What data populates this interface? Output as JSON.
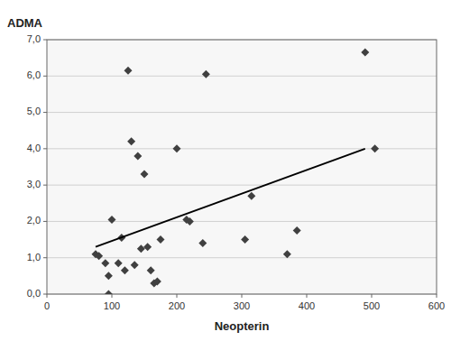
{
  "chart_data": {
    "type": "scatter",
    "xlabel": "Neopterin",
    "ylabel": "ADMA",
    "series": [
      {
        "type": "scatter",
        "marker": "diamond",
        "color": "#404040",
        "x": [
          75,
          80,
          90,
          95,
          95,
          100,
          110,
          115,
          120,
          125,
          130,
          135,
          140,
          145,
          150,
          155,
          160,
          165,
          170,
          175,
          200,
          215,
          220,
          240,
          245,
          305,
          315,
          370,
          385,
          490,
          505
        ],
        "values": [
          1.1,
          1.05,
          0.85,
          0.5,
          0.0,
          2.05,
          0.85,
          1.55,
          0.65,
          6.15,
          4.2,
          0.8,
          3.8,
          1.25,
          3.3,
          1.3,
          0.65,
          0.3,
          0.35,
          1.5,
          4.0,
          2.05,
          2.0,
          1.4,
          6.05,
          1.5,
          2.7,
          1.1,
          1.75,
          6.65,
          4.0
        ]
      },
      {
        "type": "line",
        "color": "#000000",
        "x": [
          75,
          490
        ],
        "values": [
          1.3,
          4.0
        ]
      }
    ],
    "xlim": [
      0,
      600
    ],
    "ylim": [
      0.0,
      7.0
    ],
    "xticks": [
      0,
      100,
      200,
      300,
      400,
      500,
      600
    ],
    "yticks": [
      {
        "value": 0.0,
        "label": "0,0"
      },
      {
        "value": 1.0,
        "label": "1,0"
      },
      {
        "value": 2.0,
        "label": "2,0"
      },
      {
        "value": 3.0,
        "label": "3,0"
      },
      {
        "value": 4.0,
        "label": "4,0"
      },
      {
        "value": 5.0,
        "label": "5,0"
      },
      {
        "value": 6.0,
        "label": "6,0"
      },
      {
        "value": 7.0,
        "label": "7,0"
      }
    ],
    "grid": "y"
  }
}
